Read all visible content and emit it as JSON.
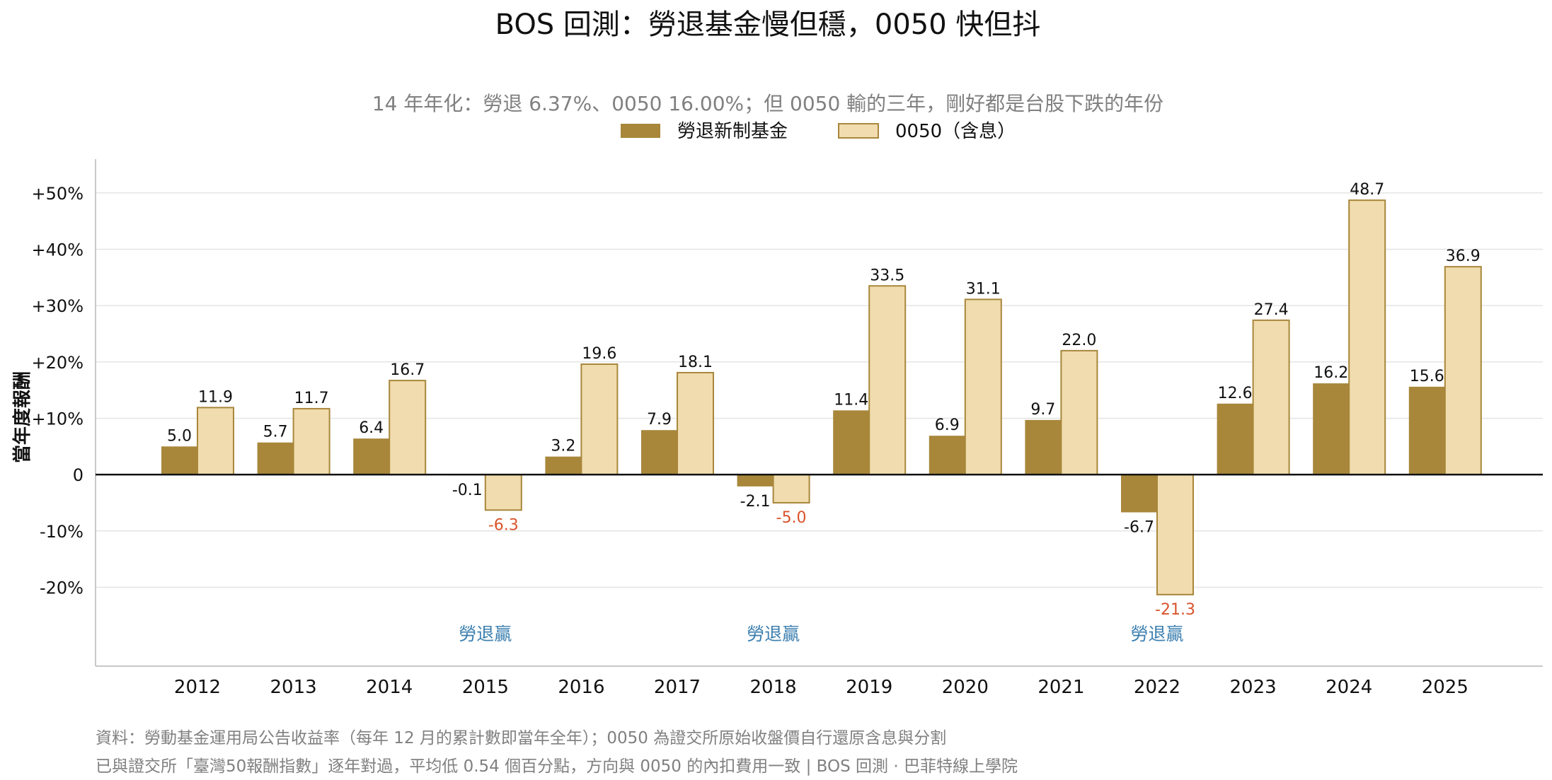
{
  "chart_data": {
    "type": "bar",
    "title": "BOS 回測：勞退基金慢但穩，0050 快但抖",
    "subtitle": "14 年年化：勞退 6.37%、0050 16.00%；但 0050 輸的三年，剛好都是台股下跌的年份",
    "ylabel": "當年度報酬",
    "xlabel": "",
    "ylim": [
      -34,
      56
    ],
    "yticks": [
      -20,
      -10,
      0,
      10,
      20,
      30,
      40,
      50
    ],
    "ytick_labels": [
      "-20%",
      "-10%",
      "0",
      "+10%",
      "+20%",
      "+30%",
      "+40%",
      "+50%"
    ],
    "categories": [
      "2012",
      "2013",
      "2014",
      "2015",
      "2016",
      "2017",
      "2018",
      "2019",
      "2020",
      "2021",
      "2022",
      "2023",
      "2024",
      "2025"
    ],
    "series": [
      {
        "name": "勞退新制基金",
        "color": "#a8873b",
        "values": [
          5.0,
          5.7,
          6.4,
          -0.1,
          3.2,
          7.9,
          -2.1,
          11.4,
          6.9,
          9.7,
          -6.7,
          12.6,
          16.2,
          15.6
        ],
        "labels": [
          "5.0",
          "5.7",
          "6.4",
          "-0.1",
          "3.2",
          "7.9",
          "-2.1",
          "11.4",
          "6.9",
          "9.7",
          "-6.7",
          "12.6",
          "16.2",
          "15.6"
        ]
      },
      {
        "name": "0050（含息）",
        "color": "#f0dcae",
        "values": [
          11.9,
          11.7,
          16.7,
          -6.3,
          19.6,
          18.1,
          -5.0,
          33.5,
          31.1,
          22.0,
          -21.3,
          27.4,
          48.7,
          36.9
        ],
        "labels": [
          "11.9",
          "11.7",
          "16.7",
          "-6.3",
          "19.6",
          "18.1",
          "-5.0",
          "33.5",
          "31.1",
          "22.0",
          "-21.3",
          "27.4",
          "48.7",
          "36.9"
        ]
      }
    ],
    "annotations": [
      {
        "category": "2015",
        "text": "勞退贏"
      },
      {
        "category": "2018",
        "text": "勞退贏"
      },
      {
        "category": "2022",
        "text": "勞退贏"
      }
    ],
    "legend": "top-center",
    "grid": true,
    "colors": {
      "negative_label": "#d9532b",
      "annotation": "#3b7fb0",
      "bar_edge": "#a8873b",
      "gridline": "#e5e5e5"
    }
  },
  "footer": {
    "line1": "資料：勞動基金運用局公告收益率（每年 12 月的累計數即當年全年）；0050 為證交所原始收盤價自行還原含息與分割",
    "line2": "已與證交所「臺灣50報酬指數」逐年對過，平均低 0.54 個百分點，方向與 0050 的內扣費用一致 | BOS 回測 ·  巴菲特線上學院"
  }
}
